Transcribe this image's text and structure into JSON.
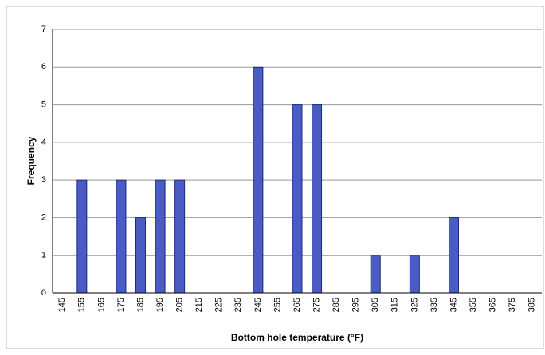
{
  "chart_data": {
    "type": "bar",
    "x_label": "Bottom hole temperature (°F)",
    "y_label": "Frequency",
    "categories": [
      "145",
      "155",
      "165",
      "175",
      "185",
      "195",
      "205",
      "215",
      "225",
      "235",
      "245",
      "255",
      "265",
      "275",
      "285",
      "295",
      "305",
      "315",
      "325",
      "335",
      "345",
      "355",
      "365",
      "375",
      "385"
    ],
    "values": [
      0,
      3,
      0,
      3,
      2,
      3,
      3,
      0,
      0,
      0,
      6,
      0,
      5,
      5,
      0,
      0,
      1,
      0,
      1,
      0,
      2,
      0,
      0,
      0,
      0
    ],
    "color": "#4a5cc4",
    "ylim": [
      0,
      7
    ],
    "yticks": [
      0,
      1,
      2,
      3,
      4,
      5,
      6,
      7
    ],
    "grid": true
  }
}
